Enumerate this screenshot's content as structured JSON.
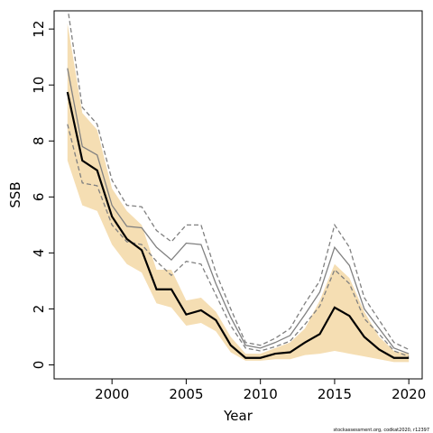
{
  "chart_data": {
    "type": "line",
    "xlabel": "Year",
    "ylabel": "SSB",
    "footnote": "stockassessment.org, codkat2020, r12397",
    "x": [
      1997,
      1998,
      1999,
      2000,
      2001,
      2002,
      2003,
      2004,
      2005,
      2006,
      2007,
      2008,
      2009,
      2010,
      2011,
      2012,
      2013,
      2014,
      2015,
      2016,
      2017,
      2018,
      2019,
      2020
    ],
    "xlim": [
      1996.1,
      2020.9
    ],
    "xticks": [
      2000,
      2005,
      2010,
      2015,
      2020
    ],
    "ylim": [
      -0.5,
      12.65
    ],
    "yticks": [
      0,
      2,
      4,
      6,
      8,
      10,
      12
    ],
    "band": {
      "color": "#f5deb3",
      "lower": [
        7.3,
        5.7,
        5.5,
        4.3,
        3.6,
        3.3,
        2.2,
        2.05,
        1.4,
        1.5,
        1.2,
        0.45,
        0.15,
        0.15,
        0.2,
        0.2,
        0.35,
        0.4,
        0.5,
        0.4,
        0.3,
        0.2,
        0.1,
        0.1
      ],
      "upper": [
        12.2,
        9.0,
        8.4,
        6.3,
        5.5,
        5.0,
        3.4,
        3.4,
        2.3,
        2.4,
        1.9,
        1.0,
        0.4,
        0.4,
        0.6,
        0.8,
        1.3,
        2.3,
        3.6,
        3.1,
        1.9,
        1.0,
        0.5,
        0.4
      ]
    },
    "series": [
      {
        "color": "#808080",
        "dashed": true,
        "values": [
          12.8,
          9.2,
          8.6,
          6.6,
          5.7,
          5.65,
          4.8,
          4.4,
          5.0,
          5.0,
          3.3,
          2.0,
          0.8,
          0.7,
          0.95,
          1.3,
          2.2,
          3.0,
          5.0,
          4.2,
          2.4,
          1.6,
          0.8,
          0.55
        ]
      },
      {
        "color": "#808080",
        "dashed": true,
        "values": [
          8.6,
          6.5,
          6.4,
          5.0,
          4.4,
          4.3,
          3.7,
          3.2,
          3.7,
          3.6,
          2.5,
          1.4,
          0.6,
          0.5,
          0.65,
          0.85,
          1.45,
          2.1,
          3.4,
          2.9,
          1.65,
          1.1,
          0.5,
          0.3
        ]
      },
      {
        "color": "#808080",
        "dashed": false,
        "values": [
          10.6,
          7.8,
          7.5,
          5.7,
          4.95,
          4.9,
          4.2,
          3.75,
          4.35,
          4.3,
          2.9,
          1.7,
          0.7,
          0.6,
          0.8,
          1.05,
          1.8,
          2.6,
          4.2,
          3.55,
          2.0,
          1.3,
          0.6,
          0.4
        ]
      },
      {
        "color": "#000000",
        "dashed": false,
        "width": 2.2,
        "values": [
          9.75,
          7.3,
          6.95,
          5.3,
          4.5,
          4.1,
          2.7,
          2.7,
          1.8,
          1.95,
          1.6,
          0.7,
          0.25,
          0.25,
          0.4,
          0.45,
          0.8,
          1.1,
          2.05,
          1.75,
          1.0,
          0.55,
          0.25,
          0.25
        ]
      }
    ]
  }
}
